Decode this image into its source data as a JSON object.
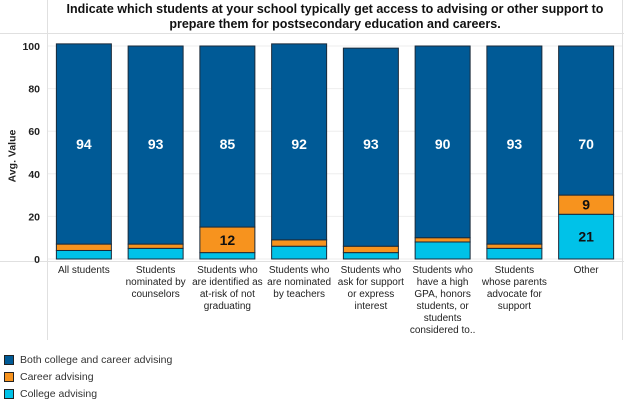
{
  "chart_data": {
    "type": "stacked-bar",
    "title": "Indicate which students at your school typically get access to advising or other support to prepare them for postsecondary education and careers.",
    "xlabel": "",
    "ylabel": "Avg. Value",
    "ylim": [
      0,
      100
    ],
    "yticks": [
      "0",
      "20",
      "40",
      "60",
      "80",
      "100"
    ],
    "ytick_values": [
      0,
      20,
      40,
      60,
      80,
      100
    ],
    "grid": true,
    "legend_position": "bottom-left",
    "categories": [
      "All students",
      "Students nominated by counselors",
      "Students who are identified as at-risk of not graduating",
      "Students who are nominated by teachers",
      "Students who ask for support or express interest",
      "Students who have a high GPA, honors students, or students considered to..",
      "Students whose parents advocate for support",
      "Other"
    ],
    "category_lines": [
      [
        "All students"
      ],
      [
        "Students",
        "nominated by",
        "counselors"
      ],
      [
        "Students who",
        "are identified as",
        "at-risk of not",
        "graduating"
      ],
      [
        "Students who",
        "are nominated",
        "by teachers"
      ],
      [
        "Students who",
        "ask for support",
        "or express",
        "interest"
      ],
      [
        "Students who",
        "have a high",
        "GPA, honors",
        "students, or",
        "students",
        "considered to.."
      ],
      [
        "Students",
        "whose parents",
        "advocate for",
        "support"
      ],
      [
        "Other"
      ]
    ],
    "series": [
      {
        "name": "College advising",
        "color": "#00c2e8",
        "values": [
          4,
          5,
          3,
          6,
          3,
          8,
          5,
          21
        ],
        "labels": [
          null,
          null,
          null,
          null,
          null,
          null,
          null,
          "21"
        ]
      },
      {
        "name": "Career advising",
        "color": "#f7931e",
        "values": [
          3,
          2,
          12,
          3,
          3,
          2,
          2,
          9
        ],
        "labels": [
          null,
          null,
          "12",
          null,
          null,
          null,
          null,
          "9"
        ]
      },
      {
        "name": "Both college and career advising",
        "color": "#005a96",
        "values": [
          94,
          93,
          85,
          92,
          93,
          90,
          93,
          70
        ],
        "labels": [
          "94",
          "93",
          "85",
          "92",
          "93",
          "90",
          "93",
          "70"
        ]
      }
    ],
    "legend": [
      {
        "name": "Both college and career advising",
        "color": "#005a96"
      },
      {
        "name": "Career advising",
        "color": "#f7931e"
      },
      {
        "name": "College advising",
        "color": "#00c2e8"
      }
    ]
  }
}
